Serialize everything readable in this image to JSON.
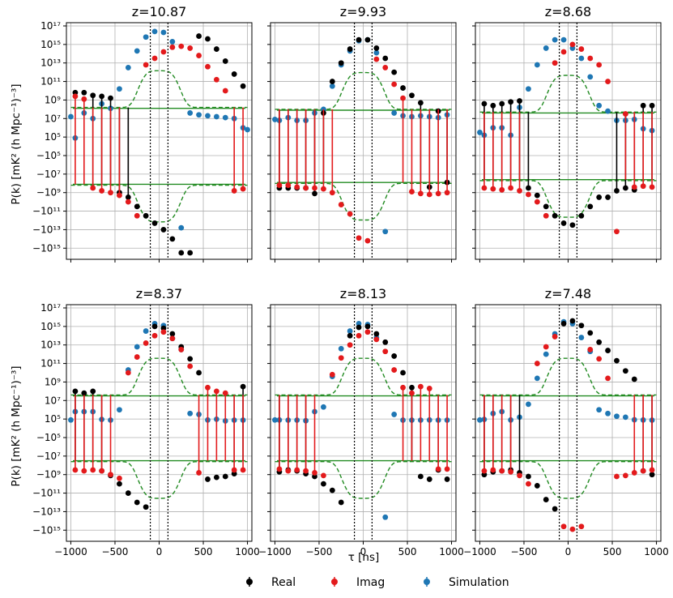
{
  "figure": {
    "ylabel": "P(k) [mK² (h Mpc⁻¹)⁻³]",
    "xlabel": "τ [ns]",
    "x_ticks": [
      "−1000",
      "−500",
      "0",
      "500",
      "1000"
    ],
    "y_ticks": [
      "10¹⁷",
      "10¹⁵",
      "10¹³",
      "10¹¹",
      "10⁹",
      "10⁷",
      "10⁵",
      "−10⁵",
      "−10⁷",
      "−10⁹",
      "−10¹¹",
      "−10¹³",
      "−10¹⁵"
    ],
    "legend": [
      "Real",
      "Imag",
      "Simulation"
    ],
    "colors": {
      "real": "#000000",
      "imag": "#e31a1c",
      "sim": "#1f77b4",
      "noise": "#228b22",
      "vline": "#000000",
      "grid": "#b0b0b0"
    }
  },
  "chart_data": [
    {
      "type": "scatter",
      "title": "z=10.87",
      "xlabel": "τ [ns]",
      "ylabel": "P(k) [mK² (h Mpc⁻¹)⁻³]",
      "xlim": [
        -1050,
        1050
      ],
      "y_scale": "symlog (log10 of |P|, signed)",
      "series": [
        {
          "name": "Real",
          "x": [
            -950,
            -850,
            -750,
            -650,
            -550,
            -450,
            -350,
            -250,
            -150,
            -50,
            50,
            150,
            250,
            350,
            450,
            550,
            650,
            750,
            850,
            950
          ],
          "y_log10": [
            9.8,
            9.8,
            9.5,
            9.4,
            9.2,
            -9,
            -9.5,
            -10.5,
            -11.5,
            -12.3,
            -13,
            -14,
            -15.5,
            -15.5,
            15.9,
            15.6,
            14.5,
            13.2,
            11.8,
            10.5
          ]
        },
        {
          "name": "Imag",
          "x": [
            -950,
            -850,
            -750,
            -650,
            -550,
            -450,
            -350,
            -250,
            -150,
            -50,
            50,
            150,
            250,
            350,
            450,
            550,
            650,
            750,
            850,
            950
          ],
          "y_log10": [
            9.4,
            9.1,
            -8.5,
            -8.8,
            -9,
            -9.3,
            -10,
            -11.5,
            12.8,
            13.5,
            14.2,
            14.7,
            14.8,
            14.6,
            13.8,
            12.6,
            11.2,
            10,
            -8.8,
            -8.6
          ]
        },
        {
          "name": "Simulation",
          "x": [
            -1000,
            -950,
            -850,
            -750,
            -650,
            -550,
            -450,
            -350,
            -250,
            -150,
            -50,
            50,
            150,
            250,
            350,
            450,
            550,
            650,
            750,
            850,
            950,
            1000
          ],
          "y_log10": [
            7.2,
            4.5,
            7.6,
            7,
            8.6,
            8.1,
            10.2,
            12.5,
            14.3,
            15.8,
            16.4,
            16.3,
            15.3,
            -12.8,
            7.6,
            7.4,
            7.3,
            7.2,
            7.1,
            7,
            6,
            5.8
          ]
        }
      ],
      "noise_upper_log10": 8.1,
      "noise_lower_log10": -8.1,
      "vlines": [
        -100,
        100
      ]
    },
    {
      "type": "scatter",
      "title": "z=9.93",
      "xlabel": "τ [ns]",
      "ylabel": "P(k) [mK² (h Mpc⁻¹)⁻³]",
      "xlim": [
        -1050,
        1050
      ],
      "series": [
        {
          "name": "Real",
          "x": [
            -950,
            -850,
            -750,
            -650,
            -550,
            -450,
            -350,
            -250,
            -150,
            -50,
            50,
            150,
            250,
            350,
            450,
            550,
            650,
            750,
            850,
            950
          ],
          "y_log10": [
            -8.5,
            -8.5,
            -8.5,
            -8.5,
            -9.1,
            7.6,
            11,
            13,
            14.5,
            15.5,
            15.5,
            14.6,
            13.5,
            12,
            10.3,
            9.5,
            8.7,
            -8.4,
            7.8,
            -7.9
          ]
        },
        {
          "name": "Imag",
          "x": [
            -950,
            -850,
            -750,
            -650,
            -550,
            -450,
            -350,
            -250,
            -150,
            -50,
            50,
            150,
            250,
            350,
            450,
            550,
            650,
            750,
            850,
            950
          ],
          "y_log10": [
            -8.2,
            -8.2,
            -8.4,
            -8.5,
            -8.5,
            -8.6,
            -9,
            -10.3,
            -11.3,
            -13.9,
            -14.2,
            13.4,
            12.5,
            10.7,
            9.2,
            -8.9,
            -9.1,
            -9.2,
            -9.1,
            -9
          ]
        },
        {
          "name": "Simulation",
          "x": [
            -1000,
            -950,
            -850,
            -750,
            -650,
            -550,
            -450,
            -350,
            -250,
            -150,
            -50,
            50,
            150,
            250,
            350,
            450,
            550,
            650,
            750,
            850,
            950
          ],
          "y_log10": [
            6.9,
            6.8,
            7.1,
            6.8,
            6.8,
            7.6,
            8,
            10.5,
            12.8,
            14.3,
            15.4,
            15.5,
            14.1,
            -13.2,
            7.6,
            7.3,
            7.2,
            7.3,
            7.2,
            7.1,
            7.4
          ]
        }
      ],
      "noise_upper_log10": 7.9,
      "noise_lower_log10": -7.9,
      "vlines": [
        -100,
        100
      ]
    },
    {
      "type": "scatter",
      "title": "z=8.68",
      "xlabel": "τ [ns]",
      "ylabel": "P(k) [mK² (h Mpc⁻¹)⁻³]",
      "xlim": [
        -1050,
        1050
      ],
      "series": [
        {
          "name": "Real",
          "x": [
            -950,
            -850,
            -750,
            -650,
            -550,
            -450,
            -350,
            -250,
            -150,
            -50,
            50,
            150,
            250,
            350,
            450,
            550,
            650,
            750,
            850,
            950
          ],
          "y_log10": [
            8.6,
            8.4,
            8.6,
            8.8,
            8.9,
            -8.5,
            -9.3,
            -10.5,
            -11.5,
            -12.3,
            -12.5,
            -11.5,
            -10.5,
            -9.5,
            -9.5,
            -8.8,
            -8.5,
            -8.7,
            8.4,
            8.4
          ]
        },
        {
          "name": "Imag",
          "x": [
            -950,
            -850,
            -750,
            -650,
            -550,
            -450,
            -350,
            -250,
            -150,
            -50,
            50,
            150,
            250,
            350,
            450,
            550,
            650,
            750,
            850,
            950
          ],
          "y_log10": [
            -8.5,
            -8.6,
            -8.7,
            -8.5,
            -8.8,
            -9.2,
            -10,
            -11.5,
            13,
            14.2,
            15,
            14.5,
            13.5,
            12.8,
            11,
            -13.2,
            7.5,
            -8.4,
            -8.3,
            -8.4
          ]
        },
        {
          "name": "Simulation",
          "x": [
            -1000,
            -950,
            -850,
            -750,
            -650,
            -550,
            -450,
            -350,
            -250,
            -150,
            -50,
            50,
            150,
            250,
            350,
            450,
            550,
            650,
            750,
            850,
            950
          ],
          "y_log10": [
            5.5,
            5.2,
            6,
            6,
            5.2,
            8.2,
            10.2,
            12.8,
            14.6,
            15.5,
            15.5,
            14.6,
            13.5,
            11.5,
            8.4,
            7.8,
            6.8,
            6.8,
            6.9,
            5.9,
            5.7
          ]
        }
      ],
      "noise_upper_log10": 7.6,
      "noise_lower_log10": -7.6,
      "vlines": [
        -100,
        100
      ]
    },
    {
      "type": "scatter",
      "title": "z=8.37",
      "xlabel": "τ [ns]",
      "ylabel": "P(k) [mK² (h Mpc⁻¹)⁻³]",
      "xlim": [
        -1050,
        1050
      ],
      "series": [
        {
          "name": "Real",
          "x": [
            -950,
            -850,
            -750,
            -650,
            -550,
            -450,
            -350,
            -250,
            -150,
            -50,
            50,
            150,
            250,
            350,
            450,
            550,
            650,
            750,
            850,
            950
          ],
          "y_log10": [
            8,
            7.8,
            8,
            -8.6,
            -9.1,
            -10,
            -11,
            -12,
            -12.5,
            15,
            14.8,
            14.2,
            12.8,
            11.5,
            10,
            -9.5,
            -9.3,
            -9.2,
            -8.9,
            8.5
          ]
        },
        {
          "name": "Imag",
          "x": [
            -950,
            -850,
            -750,
            -650,
            -550,
            -450,
            -350,
            -250,
            -150,
            -50,
            50,
            150,
            250,
            350,
            450,
            550,
            650,
            750,
            850,
            950
          ],
          "y_log10": [
            -8.5,
            -8.6,
            -8.5,
            -8.6,
            -9,
            -9.4,
            10,
            11.7,
            13.2,
            14,
            14.4,
            13.7,
            12.5,
            10.7,
            -8.8,
            8.4,
            8,
            7.8,
            -8.5,
            -8.5
          ]
        },
        {
          "name": "Simulation",
          "x": [
            -1000,
            -950,
            -850,
            -750,
            -650,
            -550,
            -450,
            -350,
            -250,
            -150,
            -50,
            50,
            150,
            250,
            350,
            450,
            550,
            650,
            750,
            850,
            950
          ],
          "y_log10": [
            4.5,
            5.8,
            5.8,
            5.8,
            4.8,
            4.4,
            6,
            10.3,
            12.8,
            14.5,
            15.3,
            15.1,
            13.7,
            12.5,
            5.6,
            5.5,
            4.5,
            4.9,
            4,
            4.4,
            4.4
          ]
        }
      ],
      "noise_upper_log10": 7.5,
      "noise_lower_log10": -7.5,
      "vlines": [
        -100,
        100
      ]
    },
    {
      "type": "scatter",
      "title": "z=8.13",
      "xlabel": "τ [ns]",
      "ylabel": "P(k) [mK² (h Mpc⁻¹)⁻³]",
      "xlim": [
        -1050,
        1050
      ],
      "series": [
        {
          "name": "Real",
          "x": [
            -950,
            -850,
            -750,
            -650,
            -550,
            -450,
            -350,
            -250,
            -150,
            -50,
            50,
            150,
            250,
            350,
            450,
            550,
            650,
            750,
            850,
            950
          ],
          "y_log10": [
            -8.7,
            -8.5,
            -8.6,
            -8.9,
            -9.2,
            -10,
            -10.7,
            -12,
            14,
            14.9,
            15,
            14.2,
            13.3,
            11.8,
            10,
            8.4,
            -9.2,
            -9.5,
            -8.5,
            -9.5
          ]
        },
        {
          "name": "Imag",
          "x": [
            -950,
            -850,
            -750,
            -650,
            -550,
            -450,
            -350,
            -250,
            -150,
            -50,
            50,
            150,
            250,
            350,
            450,
            550,
            650,
            750,
            850,
            950
          ],
          "y_log10": [
            -8.4,
            -8.6,
            -8.5,
            -8.6,
            -8.8,
            -9.1,
            9.8,
            11.6,
            13,
            14,
            14.4,
            13.6,
            12.3,
            10.3,
            8.4,
            7.8,
            8.5,
            8.3,
            -8.4,
            -8.4
          ]
        },
        {
          "name": "Simulation",
          "x": [
            -1000,
            -950,
            -850,
            -750,
            -650,
            -550,
            -450,
            -350,
            -250,
            -150,
            -50,
            50,
            150,
            250,
            350,
            450,
            550,
            650,
            750,
            850,
            950
          ],
          "y_log10": [
            4.5,
            4.5,
            4.4,
            4.4,
            4.1,
            5.8,
            6.3,
            9.6,
            12.6,
            14.5,
            15.3,
            15.2,
            13.8,
            -13.6,
            5.5,
            4.4,
            4.4,
            4.4,
            4.5,
            4.4,
            4.4
          ]
        }
      ],
      "noise_upper_log10": 7.5,
      "noise_lower_log10": -7.5,
      "vlines": [
        -100,
        100
      ]
    },
    {
      "type": "scatter",
      "title": "z=7.48",
      "xlabel": "τ [ns]",
      "ylabel": "P(k) [mK² (h Mpc⁻¹)⁻³]",
      "xlim": [
        -1050,
        1050
      ],
      "series": [
        {
          "name": "Real",
          "x": [
            -950,
            -850,
            -750,
            -650,
            -550,
            -450,
            -350,
            -250,
            -150,
            -50,
            50,
            150,
            250,
            350,
            450,
            550,
            650,
            750,
            850,
            950
          ],
          "y_log10": [
            -9,
            -8.7,
            -8.6,
            -8.5,
            -8.8,
            -9.2,
            -10.2,
            -11.7,
            -12.7,
            15.3,
            15.6,
            15.1,
            14.3,
            13.3,
            12.4,
            11.3,
            10.2,
            9.3,
            -8.6,
            -9
          ]
        },
        {
          "name": "Imag",
          "x": [
            -950,
            -850,
            -750,
            -650,
            -550,
            -450,
            -350,
            -250,
            -150,
            -50,
            50,
            150,
            250,
            350,
            450,
            550,
            650,
            750,
            850,
            950
          ],
          "y_log10": [
            -8.6,
            -8.5,
            -8.6,
            -8.7,
            -9.1,
            -10,
            11,
            12.8,
            13.9,
            -14.6,
            -14.9,
            -14.6,
            12.5,
            11.5,
            9.4,
            -9.2,
            -9.1,
            -8.8,
            -8.6,
            -8.5
          ]
        },
        {
          "name": "Simulation",
          "x": [
            -1000,
            -950,
            -850,
            -750,
            -650,
            -550,
            -450,
            -350,
            -250,
            -150,
            -50,
            50,
            150,
            250,
            350,
            450,
            550,
            650,
            750,
            850,
            950
          ],
          "y_log10": [
            4.5,
            4.8,
            5.6,
            5.8,
            4.5,
            5.2,
            6.6,
            9.4,
            12,
            14.2,
            15.5,
            15.3,
            13.8,
            12.3,
            6,
            5.6,
            5.3,
            5.2,
            4.6,
            4.5,
            4.4
          ]
        }
      ],
      "noise_upper_log10": 7.5,
      "noise_lower_log10": -7.5,
      "vlines": [
        -100,
        100
      ]
    }
  ]
}
